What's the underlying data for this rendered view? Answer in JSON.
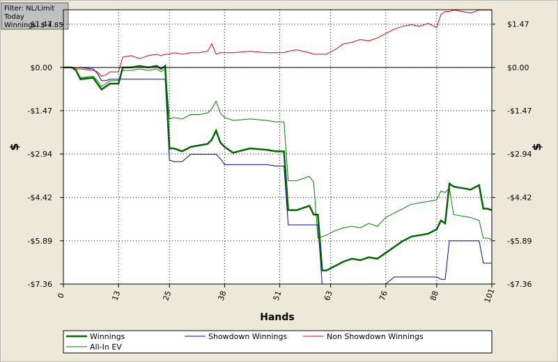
{
  "chart_data": {
    "type": "line",
    "annotations": [
      "Filter: NL/Limit",
      "Today",
      "Winnings: $-4.85"
    ],
    "x_label": "Hands",
    "y_label": "$",
    "y2_label": "$",
    "x": [
      0,
      2,
      3,
      4,
      7,
      8,
      9,
      10,
      11,
      13,
      14,
      16,
      18,
      20,
      22,
      23,
      24,
      25,
      26,
      28,
      30,
      32,
      34,
      35,
      36,
      37,
      38,
      40,
      44,
      48,
      50,
      51,
      52,
      53,
      55,
      58,
      59,
      60,
      61,
      62,
      64,
      66,
      68,
      70,
      72,
      74,
      76,
      78,
      80,
      82,
      84,
      86,
      88,
      89,
      90,
      91,
      92,
      94,
      96,
      98,
      99,
      100,
      101
    ],
    "xlim": [
      0,
      101
    ],
    "xticks": [
      0,
      13,
      25,
      38,
      51,
      63,
      76,
      88,
      101
    ],
    "ylim": [
      -7.36,
      1.96
    ],
    "yticks": [
      {
        "value": 1.47,
        "label": "$1.47"
      },
      {
        "value": 0,
        "label": "$0.00"
      },
      {
        "value": -1.47,
        "label": "-$1.47"
      },
      {
        "value": -2.94,
        "label": "-$2.94"
      },
      {
        "value": -4.42,
        "label": "-$4.42"
      },
      {
        "value": -5.89,
        "label": "-$5.89"
      },
      {
        "value": -7.36,
        "label": "-$7.36"
      }
    ],
    "y2lim": [
      -7.36,
      1.96
    ],
    "y2ticks": [
      {
        "value": 1.47,
        "label": "$1.47"
      },
      {
        "value": 0,
        "label": "$0.00"
      },
      {
        "value": -1.47,
        "label": "-$1.47"
      },
      {
        "value": -2.94,
        "label": "-$2.94"
      },
      {
        "value": -4.42,
        "label": "-$4.42"
      },
      {
        "value": -5.89,
        "label": "-$5.89"
      },
      {
        "value": -7.36,
        "label": "-$7.36"
      }
    ],
    "grid": true,
    "series": [
      {
        "name": "Winnings",
        "color": "#006400",
        "width": 2.5,
        "values": [
          0,
          0,
          -0.1,
          -0.4,
          -0.35,
          -0.55,
          -0.75,
          -0.65,
          -0.55,
          -0.55,
          0,
          0,
          0.05,
          0,
          0.05,
          -0.05,
          0.05,
          -2.75,
          -2.75,
          -2.85,
          -2.7,
          -2.65,
          -2.6,
          -2.45,
          -2.15,
          -2.55,
          -2.7,
          -2.9,
          -2.75,
          -2.8,
          -2.85,
          -2.85,
          -2.85,
          -4.85,
          -4.85,
          -4.7,
          -5.0,
          -5.0,
          -6.9,
          -6.9,
          -6.75,
          -6.6,
          -6.5,
          -6.55,
          -6.45,
          -6.5,
          -6.3,
          -6.1,
          -5.9,
          -5.75,
          -5.7,
          -5.65,
          -5.5,
          -5.2,
          -5.3,
          -3.95,
          -4.05,
          -4.1,
          -4.15,
          -4.0,
          -4.8,
          -4.8,
          -4.85
        ]
      },
      {
        "name": "Showdown Winnings",
        "color": "#0000c0",
        "width": 1,
        "values": [
          0,
          0,
          0,
          0,
          -0.05,
          -0.2,
          -0.45,
          -0.45,
          -0.4,
          -0.4,
          -0.4,
          -0.4,
          -0.4,
          -0.4,
          -0.4,
          -0.4,
          -0.4,
          -3.15,
          -3.2,
          -3.2,
          -2.95,
          -2.95,
          -2.95,
          -2.95,
          -2.95,
          -3.1,
          -3.3,
          -3.3,
          -3.3,
          -3.3,
          -3.35,
          -3.35,
          -3.35,
          -5.35,
          -5.35,
          -5.35,
          -5.35,
          -5.35,
          -7.36,
          -7.36,
          -7.36,
          -7.36,
          -7.36,
          -7.36,
          -7.36,
          -7.36,
          -7.36,
          -7.12,
          -7.12,
          -7.12,
          -7.12,
          -7.12,
          -7.12,
          -7.2,
          -7.2,
          -5.89,
          -5.89,
          -5.89,
          -5.89,
          -5.89,
          -6.65,
          -6.65,
          -6.65
        ]
      },
      {
        "name": "Non Showdown Winnings",
        "color": "#e00000",
        "width": 1,
        "values": [
          0,
          0,
          -0.05,
          -0.05,
          -0.1,
          -0.15,
          -0.3,
          -0.25,
          -0.15,
          -0.15,
          0.35,
          0.4,
          0.3,
          0.4,
          0.45,
          0.4,
          0.45,
          0.45,
          0.5,
          0.45,
          0.5,
          0.5,
          0.55,
          0.8,
          0.45,
          0.5,
          0.5,
          0.5,
          0.55,
          0.5,
          0.5,
          0.5,
          0.5,
          0.55,
          0.6,
          0.5,
          0.45,
          0.45,
          0.45,
          0.45,
          0.6,
          0.8,
          0.85,
          0.95,
          0.9,
          1.0,
          1.15,
          1.3,
          1.4,
          1.45,
          1.4,
          1.5,
          1.35,
          1.8,
          1.9,
          1.9,
          1.95,
          1.9,
          1.85,
          1.95,
          1.95,
          1.95,
          1.95
        ]
      },
      {
        "name": "All-In EV",
        "color": "#008000",
        "width": 1,
        "values": [
          0,
          0,
          -0.1,
          -0.35,
          -0.3,
          -0.45,
          -0.65,
          -0.55,
          -0.45,
          -0.45,
          -0.1,
          -0.1,
          -0.05,
          -0.1,
          -0.05,
          -0.15,
          -0.05,
          -1.75,
          -1.7,
          -1.75,
          -1.6,
          -1.6,
          -1.55,
          -1.4,
          -1.15,
          -1.55,
          -1.7,
          -1.8,
          -1.75,
          -1.8,
          -1.85,
          -1.85,
          -1.85,
          -3.85,
          -3.85,
          -3.7,
          -3.9,
          -5.8,
          -5.75,
          -5.7,
          -5.55,
          -5.45,
          -5.4,
          -5.45,
          -5.3,
          -5.4,
          -5.1,
          -4.95,
          -4.8,
          -4.65,
          -4.6,
          -4.55,
          -4.5,
          -4.2,
          -4.25,
          -4.1,
          -5.0,
          -5.05,
          -5.1,
          -5.2,
          -5.8,
          -5.8,
          -5.85
        ]
      }
    ]
  }
}
